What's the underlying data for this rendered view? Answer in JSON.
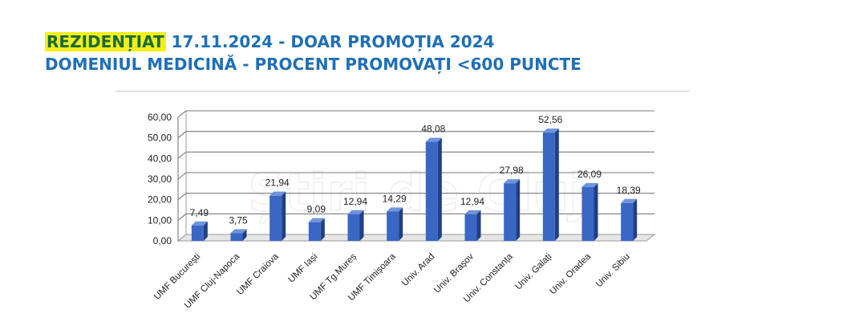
{
  "header": {
    "highlight": "REZIDENȚIAT",
    "line1_rest": " 17.11.2024 - DOAR PROMOȚIA 2024",
    "line2": "DOMENIUL MEDICINĂ  -  PROCENT PROMOVAȚI <600 PUNCTE"
  },
  "watermark": "Știri de Cluj",
  "colors": {
    "bar": "#3a66c4",
    "bar_dark": "#1f3f86",
    "bar_top": "#6f94dd",
    "highlight": "#f2ef1a",
    "title": "#1f6fb5"
  },
  "chart_data": {
    "type": "bar",
    "categories": [
      "UMF București",
      "UMF Cluj-Napoca",
      "UMF Craiova",
      "UMF Iași",
      "UMF Tg.Mureș",
      "UMF Timișoara",
      "Univ. Arad",
      "Univ. Brașov",
      "Univ. Constanța",
      "Univ. Galați",
      "Univ. Oradea",
      "Univ. Sibiu"
    ],
    "values": [
      7.49,
      3.75,
      21.94,
      9.09,
      12.94,
      14.29,
      48.08,
      12.94,
      27.98,
      52.56,
      26.09,
      18.39
    ],
    "value_labels": [
      "7,49",
      "3,75",
      "21,94",
      "9,09",
      "12,94",
      "14,29",
      "48,08",
      "12,94",
      "27,98",
      "52,56",
      "26,09",
      "18,39"
    ],
    "y_ticks": [
      "0,00",
      "10,00",
      "20,00",
      "30,00",
      "40,00",
      "50,00",
      "60,00"
    ],
    "ylim": [
      0,
      60
    ],
    "grid": true,
    "title": "",
    "xlabel": "",
    "ylabel": ""
  }
}
